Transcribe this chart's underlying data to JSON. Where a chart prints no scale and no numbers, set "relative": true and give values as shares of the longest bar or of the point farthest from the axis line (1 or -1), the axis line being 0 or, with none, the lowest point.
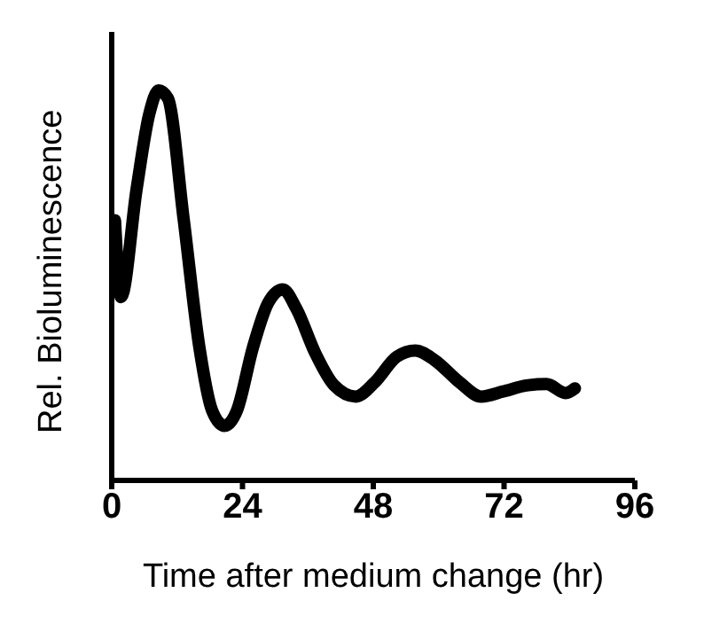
{
  "chart_data": {
    "type": "line",
    "relative": true,
    "xlabel": "Time after medium change (hr)",
    "ylabel": "Rel. Bioluminescence",
    "xlim": [
      0,
      96
    ],
    "xticks": [
      0,
      24,
      48,
      72,
      96
    ],
    "grid": false,
    "legend": false,
    "marker": "none",
    "line_style": "solid",
    "x": [
      0.6,
      1.7,
      4.6,
      6.9,
      8.6,
      10.3,
      13.2,
      16.1,
      18.4,
      20.7,
      23,
      25.9,
      28.7,
      31.4,
      33.9,
      37.4,
      40.8,
      44.8,
      48.3,
      52.3,
      55.7,
      59.2,
      63.8,
      67.8,
      71.8,
      76.4,
      79.8,
      83.3,
      85
    ],
    "series": [
      {
        "color": "#000000",
        "values": [
          0.667,
          0.47,
          0.75,
          0.94,
          1.0,
          0.98,
          0.67,
          0.34,
          0.18,
          0.14,
          0.18,
          0.34,
          0.455,
          0.49,
          0.44,
          0.325,
          0.244,
          0.215,
          0.252,
          0.317,
          0.333,
          0.309,
          0.252,
          0.215,
          0.228,
          0.244,
          0.247,
          0.224,
          0.236
        ]
      }
    ]
  }
}
